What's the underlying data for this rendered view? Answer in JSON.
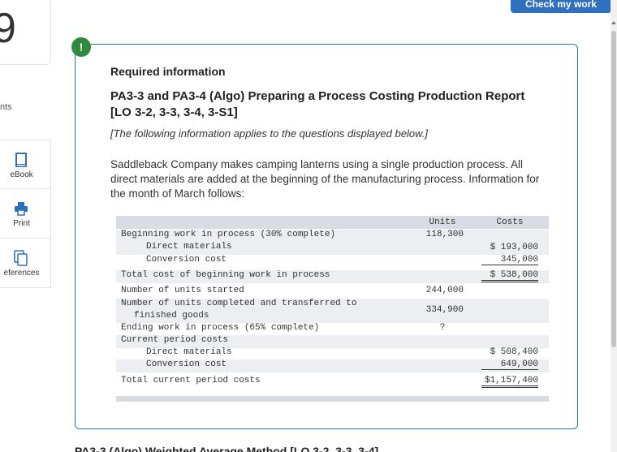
{
  "question": {
    "number": "9",
    "points_label": "nts"
  },
  "rail": {
    "items": [
      {
        "label": "eBook",
        "icon": "book-icon"
      },
      {
        "label": "Print",
        "icon": "printer-icon"
      },
      {
        "label": "eferences",
        "icon": "references-icon"
      }
    ]
  },
  "header": {
    "check_button": "Check my work"
  },
  "alert": {
    "symbol": "!"
  },
  "panel": {
    "required": "Required information",
    "heading": "PA3-3 and PA3-4 (Algo) Preparing a Process Costing Production Report [LO 3-2, 3-3, 3-4, 3-S1]",
    "note": "[The following information applies to the questions displayed below.]",
    "description": "Saddleback Company makes camping lanterns using a single production process. All direct materials are added at the beginning of the manufacturing process. Information for the month of March follows:"
  },
  "table": {
    "col_units": "Units",
    "col_costs": "Costs",
    "rows": [
      {
        "label": "Beginning work in process (30% complete)",
        "units": "118,300",
        "cost": ""
      },
      {
        "label": "Direct materials",
        "units": "",
        "cost": "$ 193,000"
      },
      {
        "label": "Conversion cost",
        "units": "",
        "cost": "345,000"
      },
      {
        "label": "Total cost of beginning work in process",
        "units": "",
        "cost": "$ 538,000"
      },
      {
        "label": "Number of units started",
        "units": "244,000",
        "cost": ""
      },
      {
        "label": "Number of units completed and transferred to",
        "label2": "finished goods",
        "units": "334,900",
        "cost": ""
      },
      {
        "label": "Ending work in process (65% complete)",
        "units": "?",
        "cost": ""
      },
      {
        "label": "Current period costs",
        "units": "",
        "cost": ""
      },
      {
        "label": "Direct materials",
        "units": "",
        "cost": "$ 508,400"
      },
      {
        "label": "Conversion cost",
        "units": "",
        "cost": "649,000"
      },
      {
        "label": "Total current period costs",
        "units": "",
        "cost": "$1,157,400"
      }
    ]
  },
  "next": {
    "title": "PA3-3 (Algo) Weighted Average Method [LO 3-2, 3-3, 3-4]"
  },
  "colors": {
    "accent": "#2f6fbf",
    "alert": "#2e8b3c",
    "table_header": "#d9dde3"
  }
}
